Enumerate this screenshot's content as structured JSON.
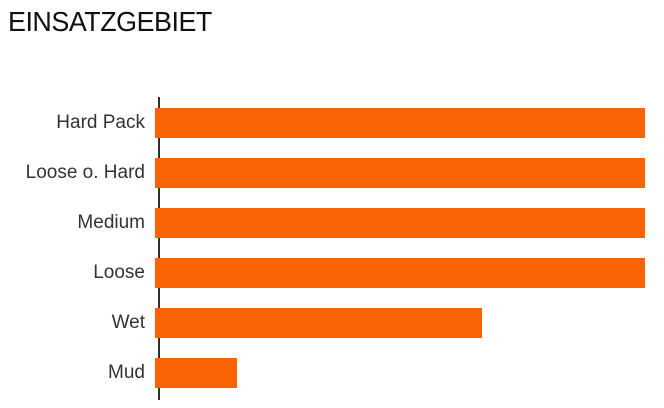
{
  "chart_data": {
    "type": "bar",
    "orientation": "horizontal",
    "title": "EINSATZGEBIET",
    "categories": [
      "Hard Pack",
      "Loose o. Hard",
      "Medium",
      "Loose",
      "Wet",
      "Mud"
    ],
    "values": [
      6,
      6,
      6,
      6,
      4,
      1
    ],
    "xlim": [
      0,
      6
    ],
    "xlabel": "",
    "ylabel": "",
    "grid": false,
    "legend": false,
    "data_labels": false,
    "bar_color": "#f96304",
    "axis_color": "#2e2e2e",
    "label_color": "#333333",
    "title_color": "#111111",
    "background_color": "#ffffff"
  }
}
